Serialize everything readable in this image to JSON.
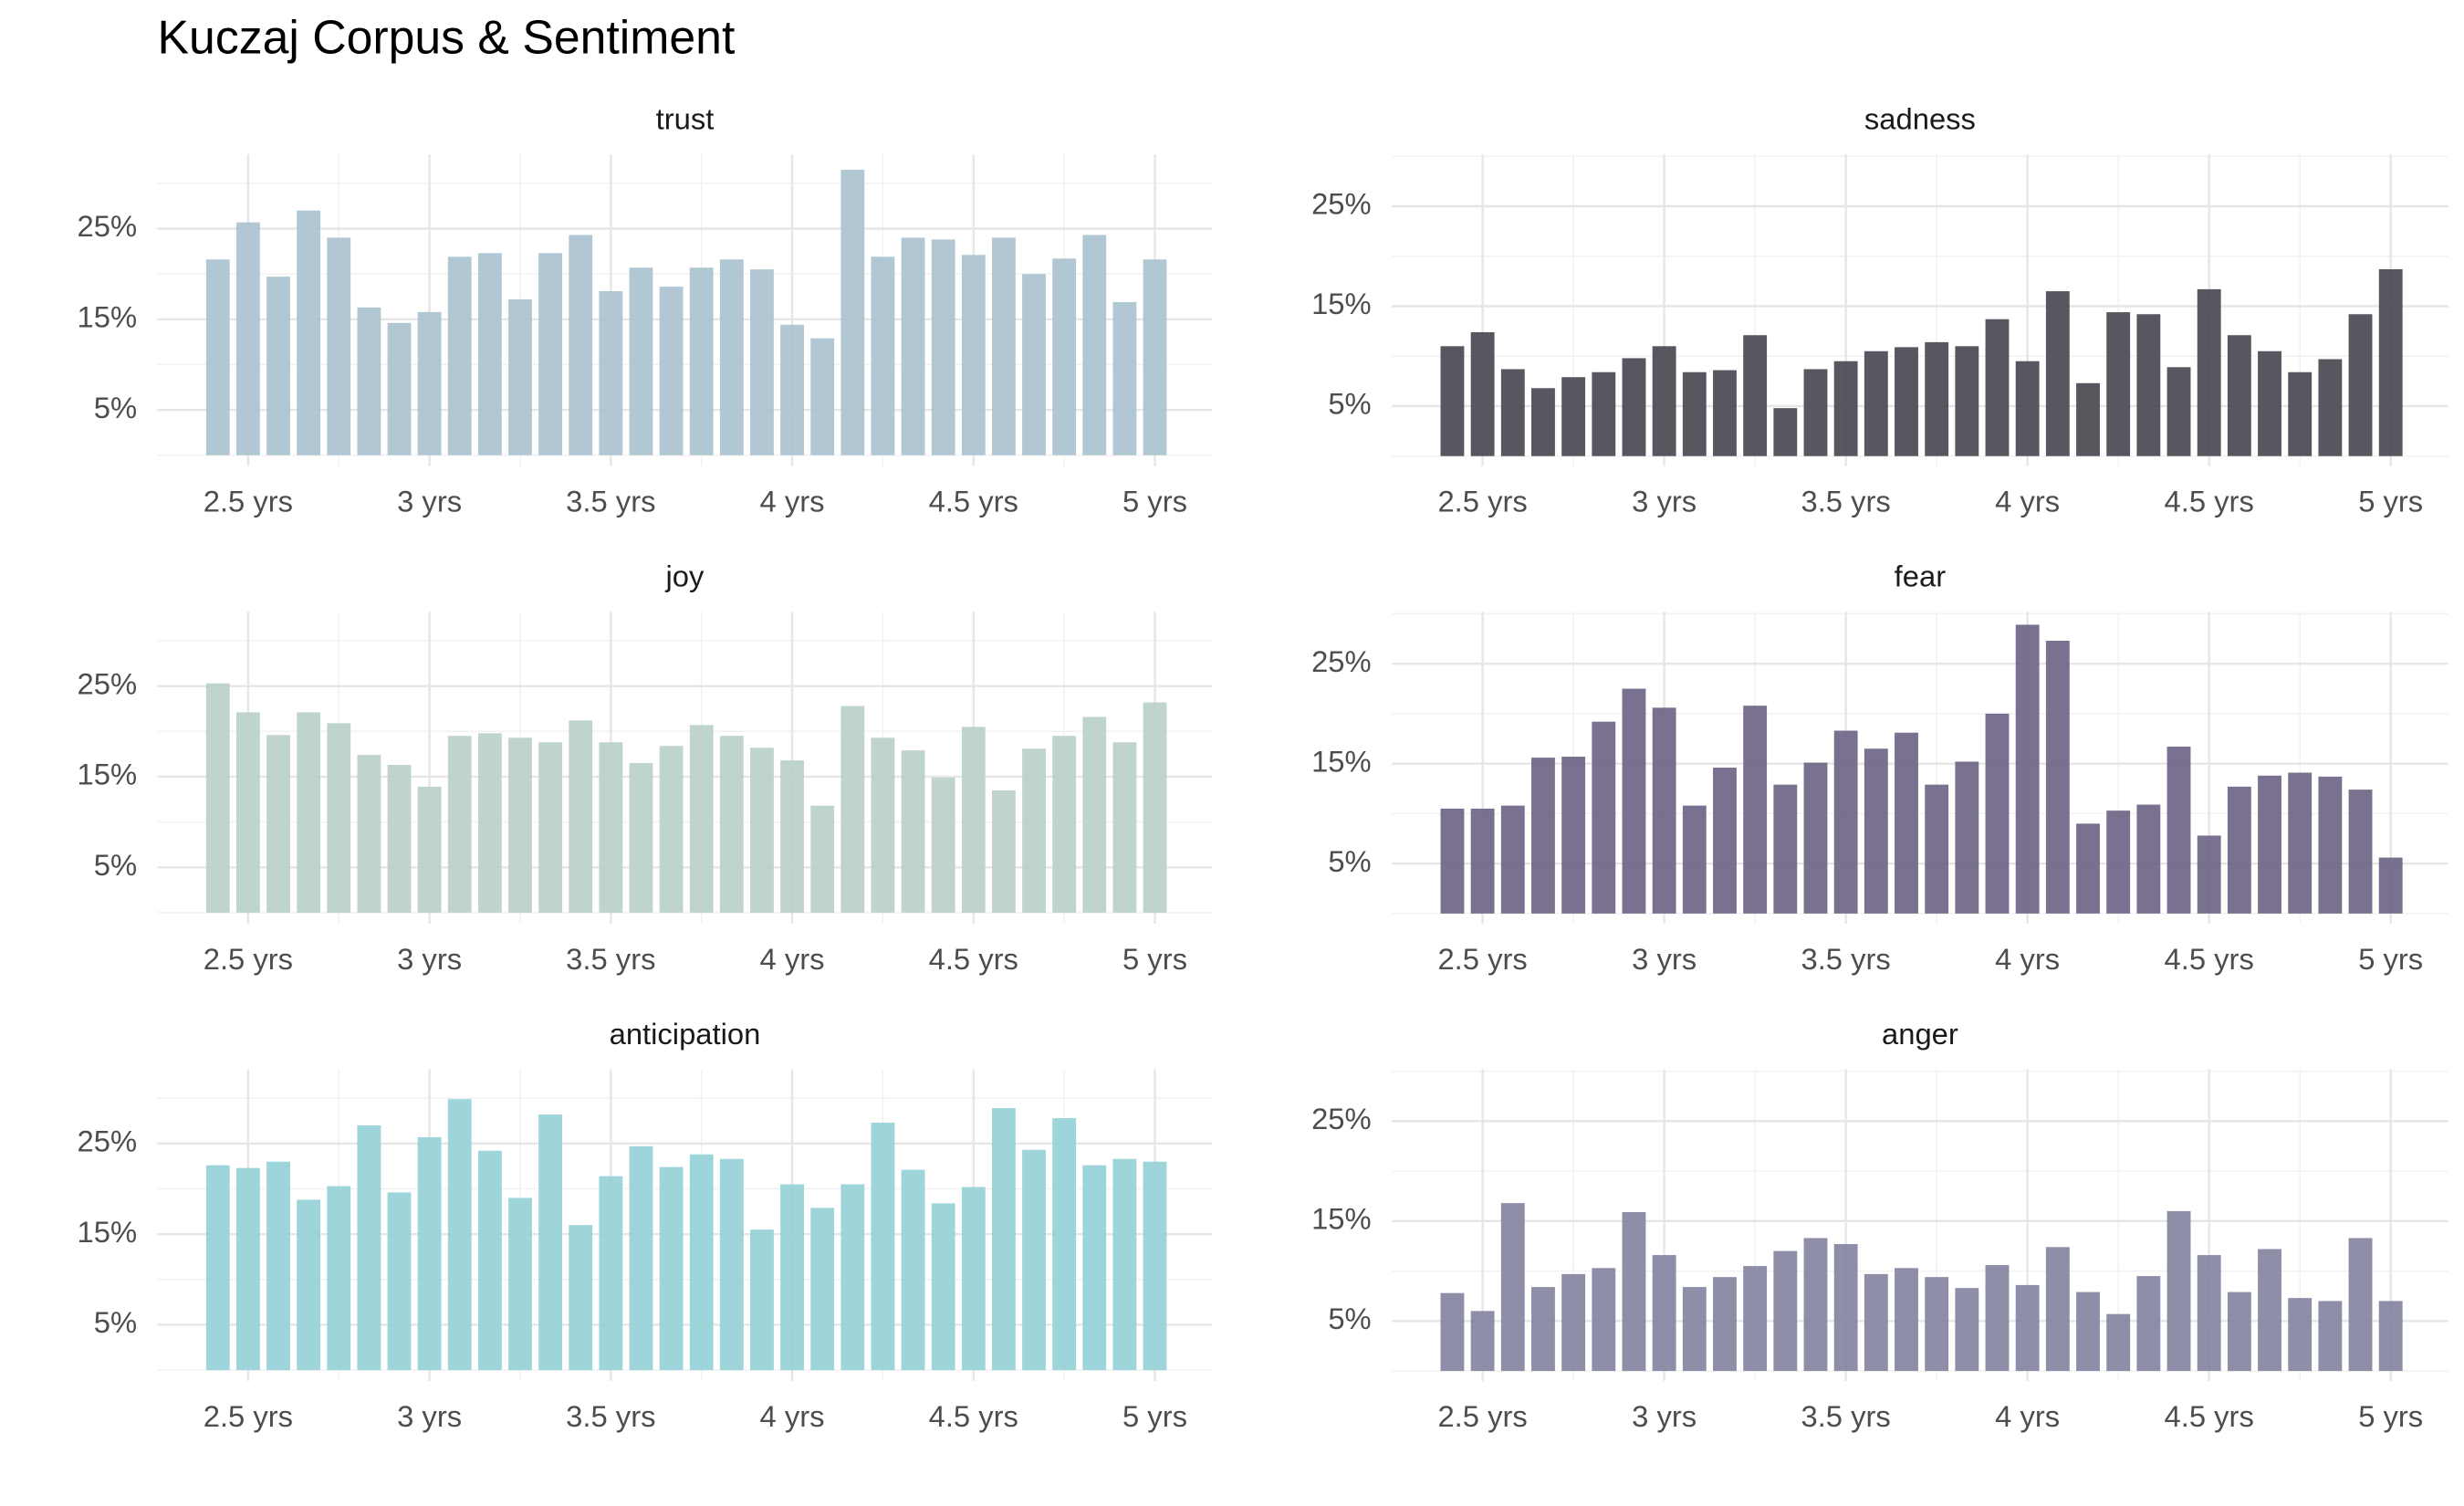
{
  "title": "Kuczaj Corpus & Sentiment",
  "chart_data": [
    {
      "type": "bar",
      "title": "trust",
      "color": "#a9c2cf",
      "x": [
        29,
        30,
        31,
        32,
        33,
        34,
        35,
        36,
        37,
        38,
        39,
        40,
        41,
        42,
        43,
        44,
        45,
        46,
        47,
        48,
        49,
        50,
        51,
        52,
        53,
        54,
        55,
        56,
        57,
        58,
        59,
        60
      ],
      "values": [
        21.6,
        25.7,
        19.7,
        27,
        24,
        16.3,
        14.6,
        15.8,
        21.9,
        22.3,
        17.2,
        22.3,
        24.3,
        18.1,
        20.7,
        18.6,
        20.7,
        21.6,
        20.5,
        14.4,
        12.9,
        31.5,
        21.9,
        24,
        23.8,
        22.1,
        24,
        20,
        21.7,
        24.3,
        16.9,
        21.6
      ],
      "xlim": [
        27,
        61.9
      ],
      "xticks": [
        {
          "value": 30,
          "label": "2.5 yrs"
        },
        {
          "value": 36,
          "label": "3 yrs"
        },
        {
          "value": 42,
          "label": "3.5 yrs"
        },
        {
          "value": 48,
          "label": "4 yrs"
        },
        {
          "value": 54,
          "label": "4.5 yrs"
        },
        {
          "value": 60,
          "label": "5 yrs"
        }
      ],
      "ylim": [
        -1.2,
        33.2
      ],
      "yticks": [
        {
          "value": 5,
          "label": "5%"
        },
        {
          "value": 15,
          "label": "15%"
        },
        {
          "value": 25,
          "label": "25%"
        }
      ],
      "grid": true
    },
    {
      "type": "bar",
      "title": "sadness",
      "color": "#48444f",
      "x": [
        29,
        30,
        31,
        32,
        33,
        34,
        35,
        36,
        37,
        38,
        39,
        40,
        41,
        42,
        43,
        44,
        45,
        46,
        47,
        48,
        49,
        50,
        51,
        52,
        53,
        54,
        55,
        56,
        57,
        58,
        59,
        60
      ],
      "values": [
        11,
        12.4,
        8.7,
        6.8,
        7.9,
        8.4,
        9.8,
        11,
        8.4,
        8.6,
        12.1,
        4.8,
        8.7,
        9.5,
        10.5,
        10.9,
        11.4,
        11,
        13.7,
        9.5,
        16.5,
        7.3,
        14.4,
        14.2,
        8.9,
        16.7,
        12.1,
        10.5,
        8.4,
        9.7,
        14.2,
        18.7
      ],
      "xlim": [
        27,
        61.9
      ],
      "xticks": [
        {
          "value": 30,
          "label": "2.5 yrs"
        },
        {
          "value": 36,
          "label": "3 yrs"
        },
        {
          "value": 42,
          "label": "3.5 yrs"
        },
        {
          "value": 48,
          "label": "4 yrs"
        },
        {
          "value": 54,
          "label": "4.5 yrs"
        },
        {
          "value": 60,
          "label": "5 yrs"
        }
      ],
      "ylim": [
        -1,
        30.2
      ],
      "yticks": [
        {
          "value": 5,
          "label": "5%"
        },
        {
          "value": 15,
          "label": "15%"
        },
        {
          "value": 25,
          "label": "25%"
        }
      ],
      "grid": true
    },
    {
      "type": "bar",
      "title": "joy",
      "color": "#b9cfca",
      "x": [
        29,
        30,
        31,
        32,
        33,
        34,
        35,
        36,
        37,
        38,
        39,
        40,
        41,
        42,
        43,
        44,
        45,
        46,
        47,
        48,
        49,
        50,
        51,
        52,
        53,
        54,
        55,
        56,
        57,
        58,
        59,
        60
      ],
      "values": [
        25.3,
        22.1,
        19.6,
        22.1,
        20.9,
        17.4,
        16.3,
        13.9,
        19.5,
        19.8,
        19.3,
        18.8,
        21.2,
        18.8,
        16.5,
        18.4,
        20.7,
        19.5,
        18.2,
        16.8,
        11.8,
        22.8,
        19.3,
        17.9,
        14.9,
        20.5,
        13.5,
        18.1,
        19.5,
        21.6,
        18.8,
        23.2
      ],
      "xlim": [
        27,
        61.9
      ],
      "xticks": [
        {
          "value": 30,
          "label": "2.5 yrs"
        },
        {
          "value": 36,
          "label": "3 yrs"
        },
        {
          "value": 42,
          "label": "3.5 yrs"
        },
        {
          "value": 48,
          "label": "4 yrs"
        },
        {
          "value": 54,
          "label": "4.5 yrs"
        },
        {
          "value": 60,
          "label": "5 yrs"
        }
      ],
      "ylim": [
        -1.2,
        33.2
      ],
      "yticks": [
        {
          "value": 5,
          "label": "5%"
        },
        {
          "value": 15,
          "label": "15%"
        },
        {
          "value": 25,
          "label": "25%"
        }
      ],
      "grid": true
    },
    {
      "type": "bar",
      "title": "fear",
      "color": "#6a6283",
      "x": [
        29,
        30,
        31,
        32,
        33,
        34,
        35,
        36,
        37,
        38,
        39,
        40,
        41,
        42,
        43,
        44,
        45,
        46,
        47,
        48,
        49,
        50,
        51,
        52,
        53,
        54,
        55,
        56,
        57,
        58,
        59,
        60
      ],
      "values": [
        10.5,
        10.5,
        10.8,
        15.6,
        15.7,
        19.2,
        22.5,
        20.6,
        10.8,
        14.6,
        20.8,
        12.9,
        15.1,
        18.3,
        16.5,
        18.1,
        12.9,
        15.2,
        20,
        28.9,
        27.3,
        9,
        10.3,
        10.9,
        16.7,
        7.8,
        12.7,
        13.8,
        14.1,
        13.7,
        12.4,
        5.6
      ],
      "xlim": [
        27,
        61.9
      ],
      "xticks": [
        {
          "value": 30,
          "label": "2.5 yrs"
        },
        {
          "value": 36,
          "label": "3 yrs"
        },
        {
          "value": 42,
          "label": "3.5 yrs"
        },
        {
          "value": 48,
          "label": "4 yrs"
        },
        {
          "value": 54,
          "label": "4.5 yrs"
        },
        {
          "value": 60,
          "label": "5 yrs"
        }
      ],
      "ylim": [
        -1,
        30.2
      ],
      "yticks": [
        {
          "value": 5,
          "label": "5%"
        },
        {
          "value": 15,
          "label": "15%"
        },
        {
          "value": 25,
          "label": "25%"
        }
      ],
      "grid": true
    },
    {
      "type": "bar",
      "title": "anticipation",
      "color": "#92d0d6",
      "x": [
        29,
        30,
        31,
        32,
        33,
        34,
        35,
        36,
        37,
        38,
        39,
        40,
        41,
        42,
        43,
        44,
        45,
        46,
        47,
        48,
        49,
        50,
        51,
        52,
        53,
        54,
        55,
        56,
        57,
        58,
        59,
        60
      ],
      "values": [
        22.6,
        22.3,
        23,
        18.8,
        20.3,
        27,
        19.6,
        25.7,
        29.9,
        24.2,
        19,
        28.2,
        16,
        21.4,
        24.7,
        22.4,
        23.8,
        23.3,
        15.5,
        20.5,
        17.9,
        20.5,
        27.3,
        22.1,
        18.4,
        20.2,
        28.9,
        24.3,
        27.8,
        22.6,
        23.3,
        23
      ],
      "xlim": [
        27,
        61.9
      ],
      "xticks": [
        {
          "value": 30,
          "label": "2.5 yrs"
        },
        {
          "value": 36,
          "label": "3 yrs"
        },
        {
          "value": 42,
          "label": "3.5 yrs"
        },
        {
          "value": 48,
          "label": "4 yrs"
        },
        {
          "value": 54,
          "label": "4.5 yrs"
        },
        {
          "value": 60,
          "label": "5 yrs"
        }
      ],
      "ylim": [
        -1.2,
        33.2
      ],
      "yticks": [
        {
          "value": 5,
          "label": "5%"
        },
        {
          "value": 15,
          "label": "15%"
        },
        {
          "value": 25,
          "label": "25%"
        }
      ],
      "grid": true
    },
    {
      "type": "bar",
      "title": "anger",
      "color": "#8282a0",
      "x": [
        29,
        30,
        31,
        32,
        33,
        34,
        35,
        36,
        37,
        38,
        39,
        40,
        41,
        42,
        43,
        44,
        45,
        46,
        47,
        48,
        49,
        50,
        51,
        52,
        53,
        54,
        55,
        56,
        57,
        58,
        59,
        60
      ],
      "values": [
        7.8,
        6,
        16.8,
        8.4,
        9.7,
        10.3,
        15.9,
        11.6,
        8.4,
        9.4,
        10.5,
        12,
        13.3,
        12.7,
        9.7,
        10.3,
        9.4,
        8.3,
        10.6,
        8.6,
        12.4,
        7.9,
        5.7,
        9.5,
        16,
        11.6,
        7.9,
        12.2,
        7.3,
        7,
        13.3,
        7
      ],
      "xlim": [
        27,
        61.9
      ],
      "xticks": [
        {
          "value": 30,
          "label": "2.5 yrs"
        },
        {
          "value": 36,
          "label": "3 yrs"
        },
        {
          "value": 42,
          "label": "3.5 yrs"
        },
        {
          "value": 48,
          "label": "4 yrs"
        },
        {
          "value": 54,
          "label": "4.5 yrs"
        },
        {
          "value": 60,
          "label": "5 yrs"
        }
      ],
      "ylim": [
        -1,
        30.2
      ],
      "yticks": [
        {
          "value": 5,
          "label": "5%"
        },
        {
          "value": 15,
          "label": "15%"
        },
        {
          "value": 25,
          "label": "25%"
        }
      ],
      "grid": true
    }
  ]
}
